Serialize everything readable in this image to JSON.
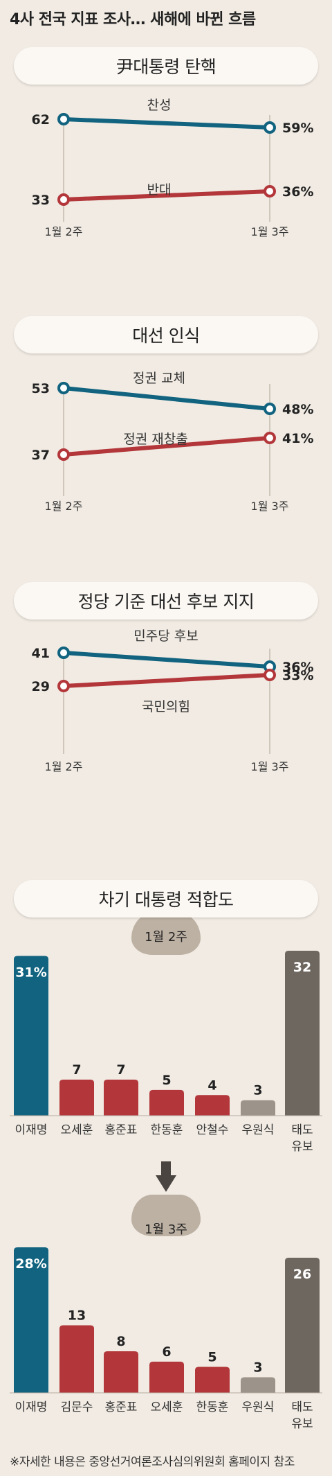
{
  "headline": "4사 전국 지표 조사… 새해에 바뀐 흐름",
  "footnote": "※자세한 내용은 중앙선거여론조사심의위원회 홈페이지 참조",
  "colors": {
    "teal": "#11637f",
    "red": "#b3373a",
    "gray": "#9c938a",
    "darkgray": "#6e6760",
    "pill_bg": "#fbf8f4",
    "background": "#f1ebe3"
  },
  "icons": {
    "arrow": "down-arrow-icon"
  },
  "chart_data": [
    {
      "type": "line",
      "title": "尹대통령 탄핵",
      "x": [
        "1월 2주",
        "1월 3주"
      ],
      "series": [
        {
          "name": "찬성",
          "values": [
            62,
            59
          ],
          "labels": [
            "62",
            "59%"
          ],
          "color": "#11637f"
        },
        {
          "name": "반대",
          "values": [
            33,
            36
          ],
          "labels": [
            "33",
            "36%"
          ],
          "color": "#b3373a"
        }
      ]
    },
    {
      "type": "line",
      "title": "대선 인식",
      "x": [
        "1월 2주",
        "1월 3주"
      ],
      "series": [
        {
          "name": "정권 교체",
          "values": [
            53,
            48
          ],
          "labels": [
            "53",
            "48%"
          ],
          "color": "#11637f"
        },
        {
          "name": "정권 재창출",
          "values": [
            37,
            41
          ],
          "labels": [
            "37",
            "41%"
          ],
          "color": "#b3373a"
        }
      ]
    },
    {
      "type": "line",
      "title": "정당 기준 대선 후보 지지",
      "x": [
        "1월 2주",
        "1월 3주"
      ],
      "series": [
        {
          "name": "민주당 후보",
          "values": [
            41,
            36
          ],
          "labels": [
            "41",
            "36%"
          ],
          "color": "#11637f"
        },
        {
          "name": "국민의힘",
          "values": [
            29,
            33
          ],
          "labels": [
            "29",
            "33%"
          ],
          "color": "#b3373a"
        }
      ]
    },
    {
      "type": "bar",
      "title": "차기 대통령 적합도",
      "period": "1월 2주",
      "categories": [
        "이재명",
        "오세훈",
        "홍준표",
        "한동훈",
        "안철수",
        "우원식",
        "태도\n유보"
      ],
      "values": [
        31,
        7,
        7,
        5,
        4,
        3,
        32
      ],
      "labels": [
        "31%",
        "7",
        "7",
        "5",
        "4",
        "3",
        "32"
      ],
      "colors": [
        "#11637f",
        "#b3373a",
        "#b3373a",
        "#b3373a",
        "#b3373a",
        "#9c938a",
        "#6e6760"
      ]
    },
    {
      "type": "bar",
      "period": "1월 3주",
      "categories": [
        "이재명",
        "김문수",
        "홍준표",
        "오세훈",
        "한동훈",
        "우원식",
        "태도\n유보"
      ],
      "values": [
        28,
        13,
        8,
        6,
        5,
        3,
        26
      ],
      "labels": [
        "28%",
        "13",
        "8",
        "6",
        "5",
        "3",
        "26"
      ],
      "colors": [
        "#11637f",
        "#b3373a",
        "#b3373a",
        "#b3373a",
        "#b3373a",
        "#9c938a",
        "#6e6760"
      ]
    }
  ]
}
